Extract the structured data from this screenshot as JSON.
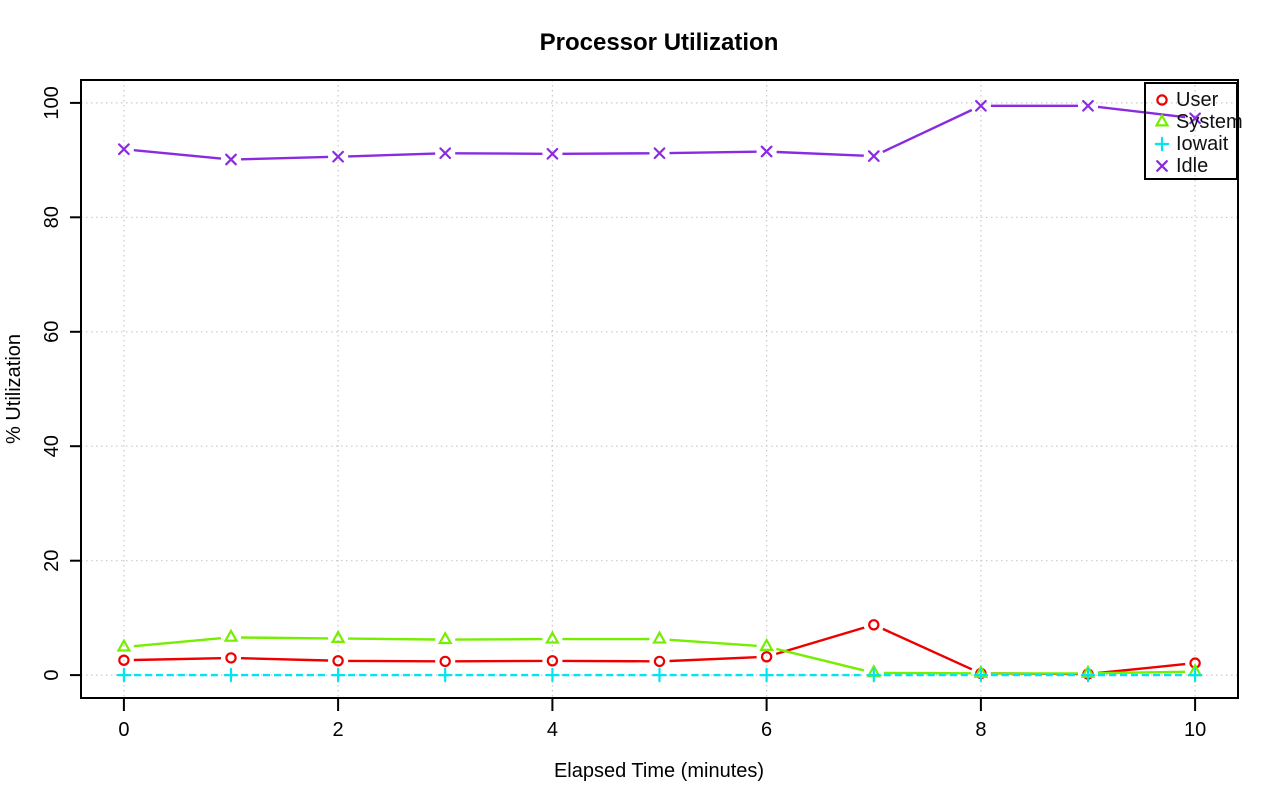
{
  "colors": {
    "background": "#FFFFFF",
    "axis": "#000000",
    "grid": "#C9C9C9",
    "user": "#EE0000",
    "system": "#76EE00",
    "iowait": "#00E5EE",
    "idle": "#8A2BE2"
  },
  "chart_data": {
    "type": "line",
    "title": "Processor Utilization",
    "xlabel": "Elapsed Time (minutes)",
    "ylabel": "% Utilization",
    "x": [
      0,
      1,
      2,
      3,
      4,
      5,
      6,
      7,
      8,
      9,
      10
    ],
    "x_ticks": [
      0,
      2,
      4,
      6,
      8,
      10
    ],
    "y_ticks": [
      0,
      20,
      40,
      60,
      80,
      100
    ],
    "xlim": [
      -0.4,
      10.4
    ],
    "ylim": [
      -4,
      104
    ],
    "grid": true,
    "grid_style": "dotted",
    "legend_position": "top-right",
    "marker_line_type": "both-with-gaps",
    "series": [
      {
        "name": "User",
        "marker": "circle",
        "color": "#EE0000",
        "line_style": "solid",
        "values": [
          2.6,
          3.0,
          2.5,
          2.4,
          2.5,
          2.4,
          3.2,
          8.8,
          0.3,
          0.2,
          2.1
        ]
      },
      {
        "name": "System",
        "marker": "triangle",
        "color": "#76EE00",
        "line_style": "solid",
        "values": [
          4.9,
          6.6,
          6.4,
          6.2,
          6.3,
          6.3,
          5.0,
          0.4,
          0.3,
          0.3,
          0.6
        ]
      },
      {
        "name": "Iowait",
        "marker": "plus",
        "color": "#00E5EE",
        "line_style": "dashed",
        "values": [
          0,
          0,
          0,
          0,
          0,
          0,
          0,
          0,
          0,
          0,
          0
        ]
      },
      {
        "name": "Idle",
        "marker": "x",
        "color": "#8A2BE2",
        "line_style": "solid",
        "values": [
          91.9,
          90.1,
          90.6,
          91.2,
          91.1,
          91.2,
          91.5,
          90.7,
          99.5,
          99.5,
          97.3
        ]
      }
    ]
  }
}
